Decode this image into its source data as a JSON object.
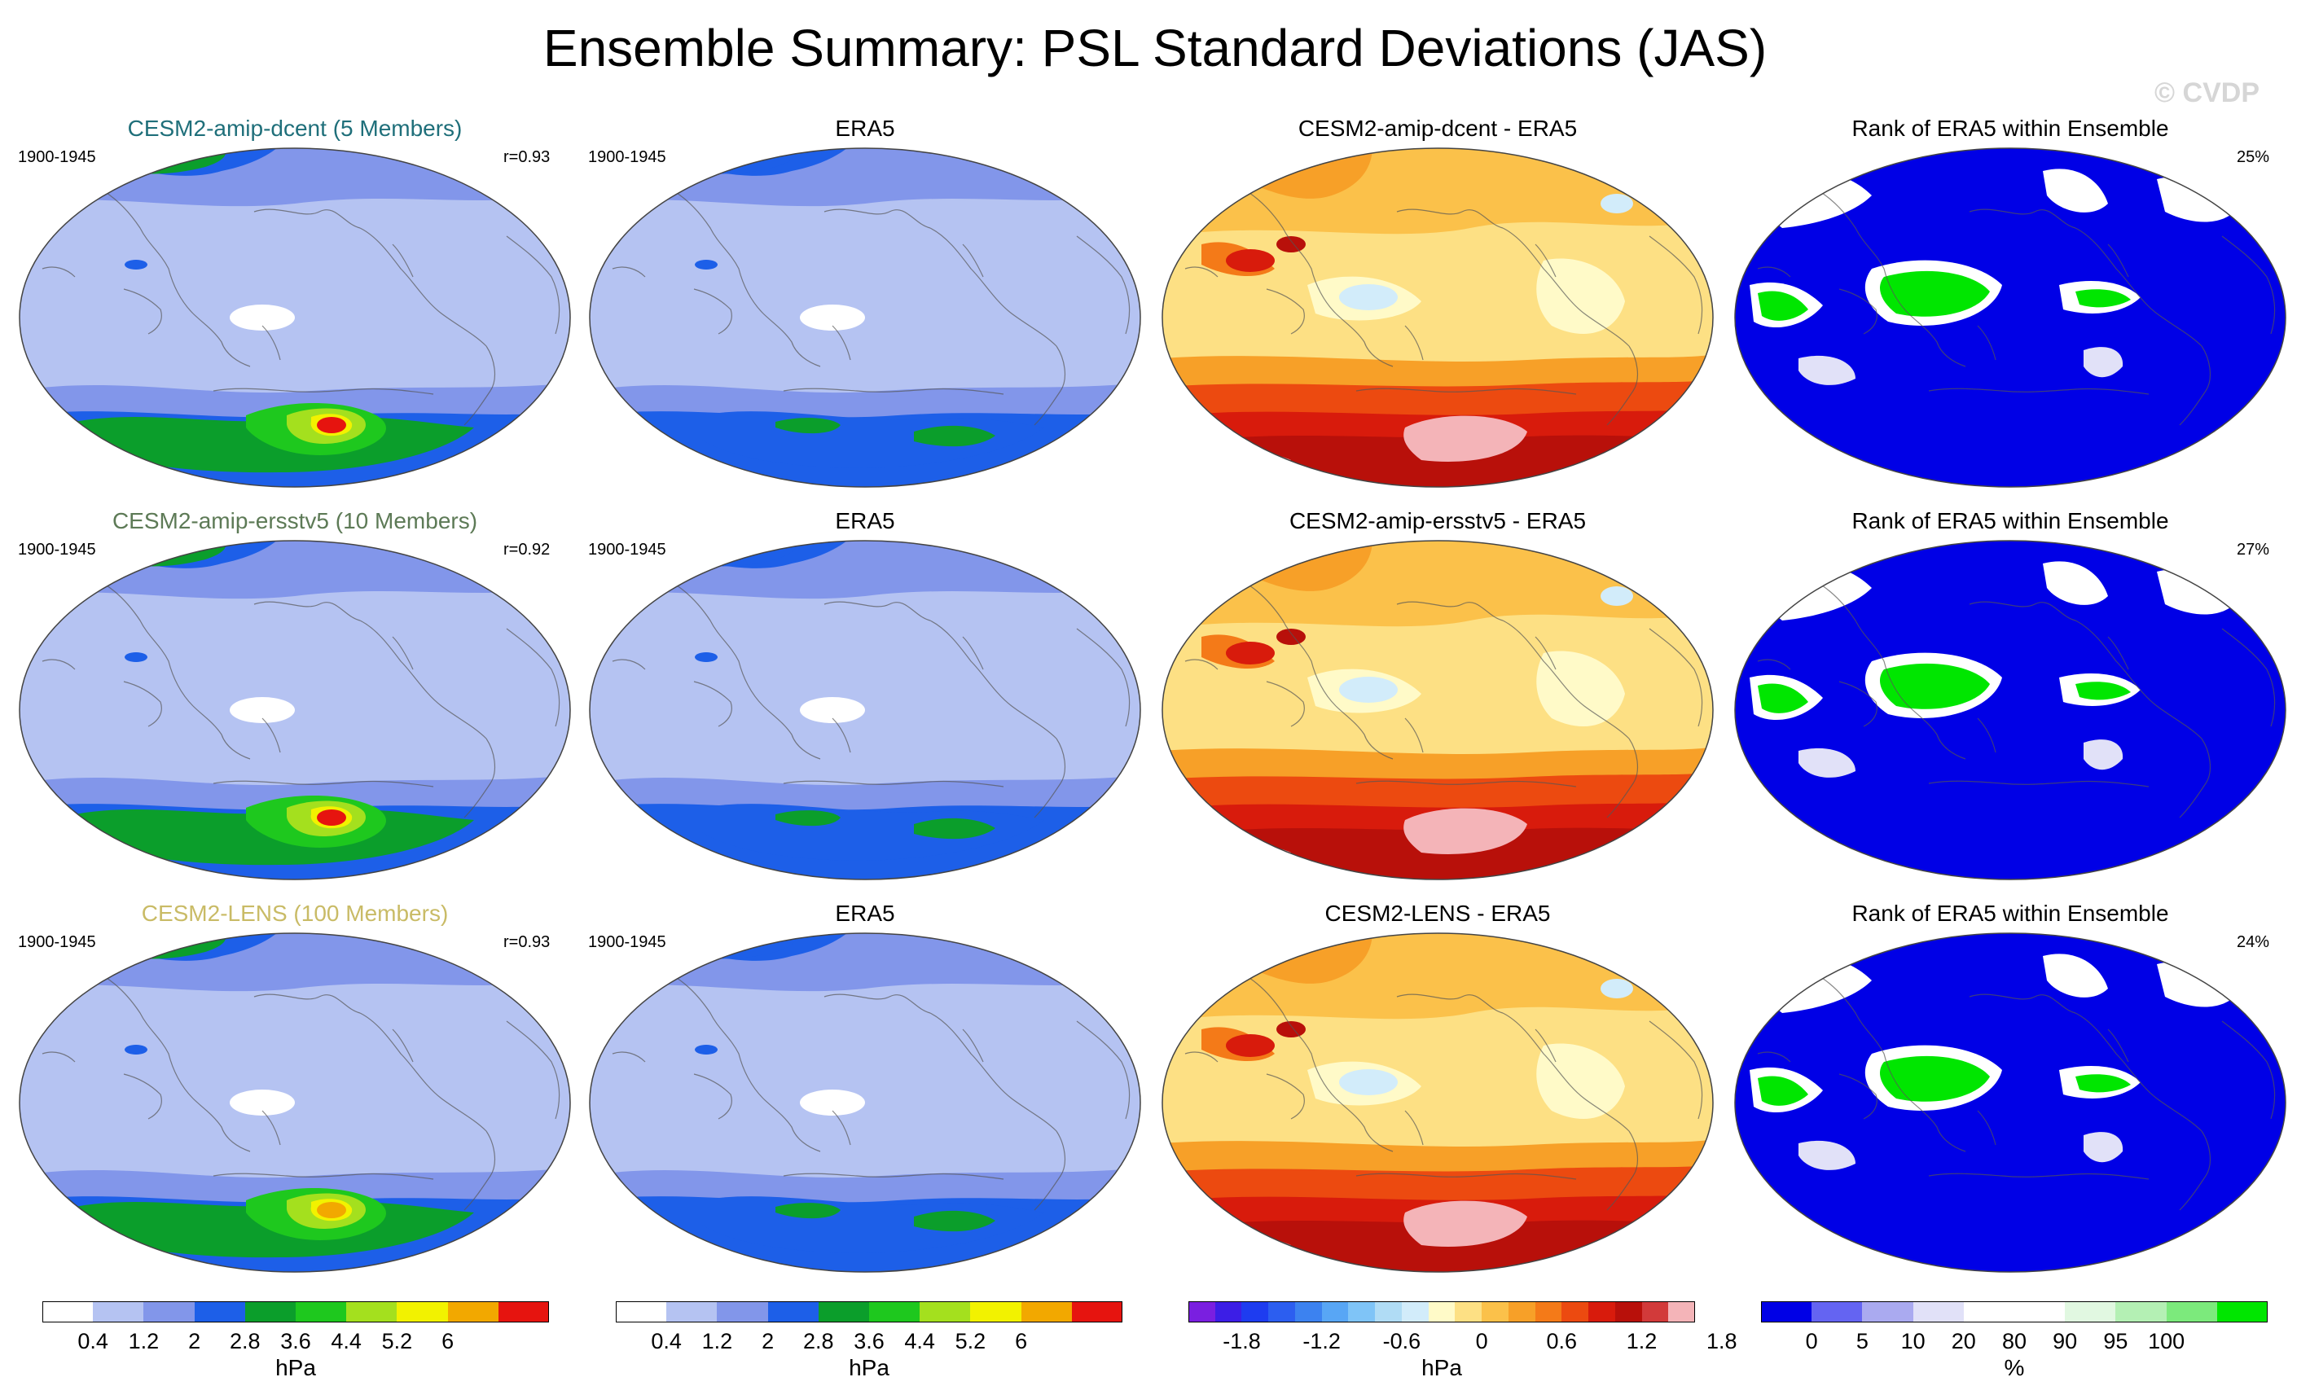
{
  "figure": {
    "title": "Ensemble Summary: PSL Standard Deviations (JAS)",
    "copyright": "© CVDP"
  },
  "rows": [
    {
      "model_title": "CESM2-amip-dcent (5 Members)",
      "model_title_color": "#1f6f7a",
      "period_model": "1900-1945",
      "pattern_corr": "r=0.93",
      "obs_title": "ERA5",
      "period_obs": "1900-1945",
      "diff_title": "CESM2-amip-dcent - ERA5",
      "rank_title": "Rank of ERA5 within Ensemble",
      "rank_pct": "25%"
    },
    {
      "model_title": "CESM2-amip-ersstv5 (10 Members)",
      "model_title_color": "#5d7a56",
      "period_model": "1900-1945",
      "pattern_corr": "r=0.92",
      "obs_title": "ERA5",
      "period_obs": "1900-1945",
      "diff_title": "CESM2-amip-ersstv5 - ERA5",
      "rank_title": "Rank of ERA5 within Ensemble",
      "rank_pct": "27%"
    },
    {
      "model_title": "CESM2-LENS (100 Members)",
      "model_title_color": "#c9bb66",
      "period_model": "1900-1945",
      "pattern_corr": "r=0.93",
      "obs_title": "ERA5",
      "period_obs": "1900-1945",
      "diff_title": "CESM2-LENS - ERA5",
      "rank_title": "Rank of ERA5 within Ensemble",
      "rank_pct": "24%"
    }
  ],
  "colorbars": {
    "std": {
      "units": "hPa",
      "ticks": [
        "0.4",
        "1.2",
        "2",
        "2.8",
        "3.6",
        "4.4",
        "5.2",
        "6"
      ],
      "colors": [
        "#ffffff",
        "#b5c3f2",
        "#8296ea",
        "#1d5fe8",
        "#0b9e2b",
        "#1ec81e",
        "#a4e01e",
        "#f2f200",
        "#f2a800",
        "#e6140f"
      ]
    },
    "diff": {
      "units": "hPa",
      "ticks": [
        "-1.8",
        "-1.2",
        "-0.6",
        "0",
        "0.6",
        "1.2",
        "1.8"
      ],
      "colors": [
        "#7a1fe0",
        "#3c1ee6",
        "#1e3cf0",
        "#2c5ef0",
        "#3c82f0",
        "#58a6f5",
        "#7fc4f7",
        "#b0dcf5",
        "#d2ecfa",
        "#fffac8",
        "#fde084",
        "#fbc14a",
        "#f7a028",
        "#f47a18",
        "#ec4a10",
        "#d81b0c",
        "#b8100a",
        "#d23a3a",
        "#f4b4b8"
      ]
    },
    "rank": {
      "units": "%",
      "ticks": [
        "0",
        "5",
        "10",
        "20",
        "80",
        "90",
        "95",
        "100"
      ],
      "colors": [
        "#0000e6",
        "#6464f2",
        "#aaaaf0",
        "#e1e1f8",
        "#ffffff",
        "#ffffff",
        "#e1f8e1",
        "#b4f0b4",
        "#7cea7c",
        "#00e600"
      ]
    }
  }
}
